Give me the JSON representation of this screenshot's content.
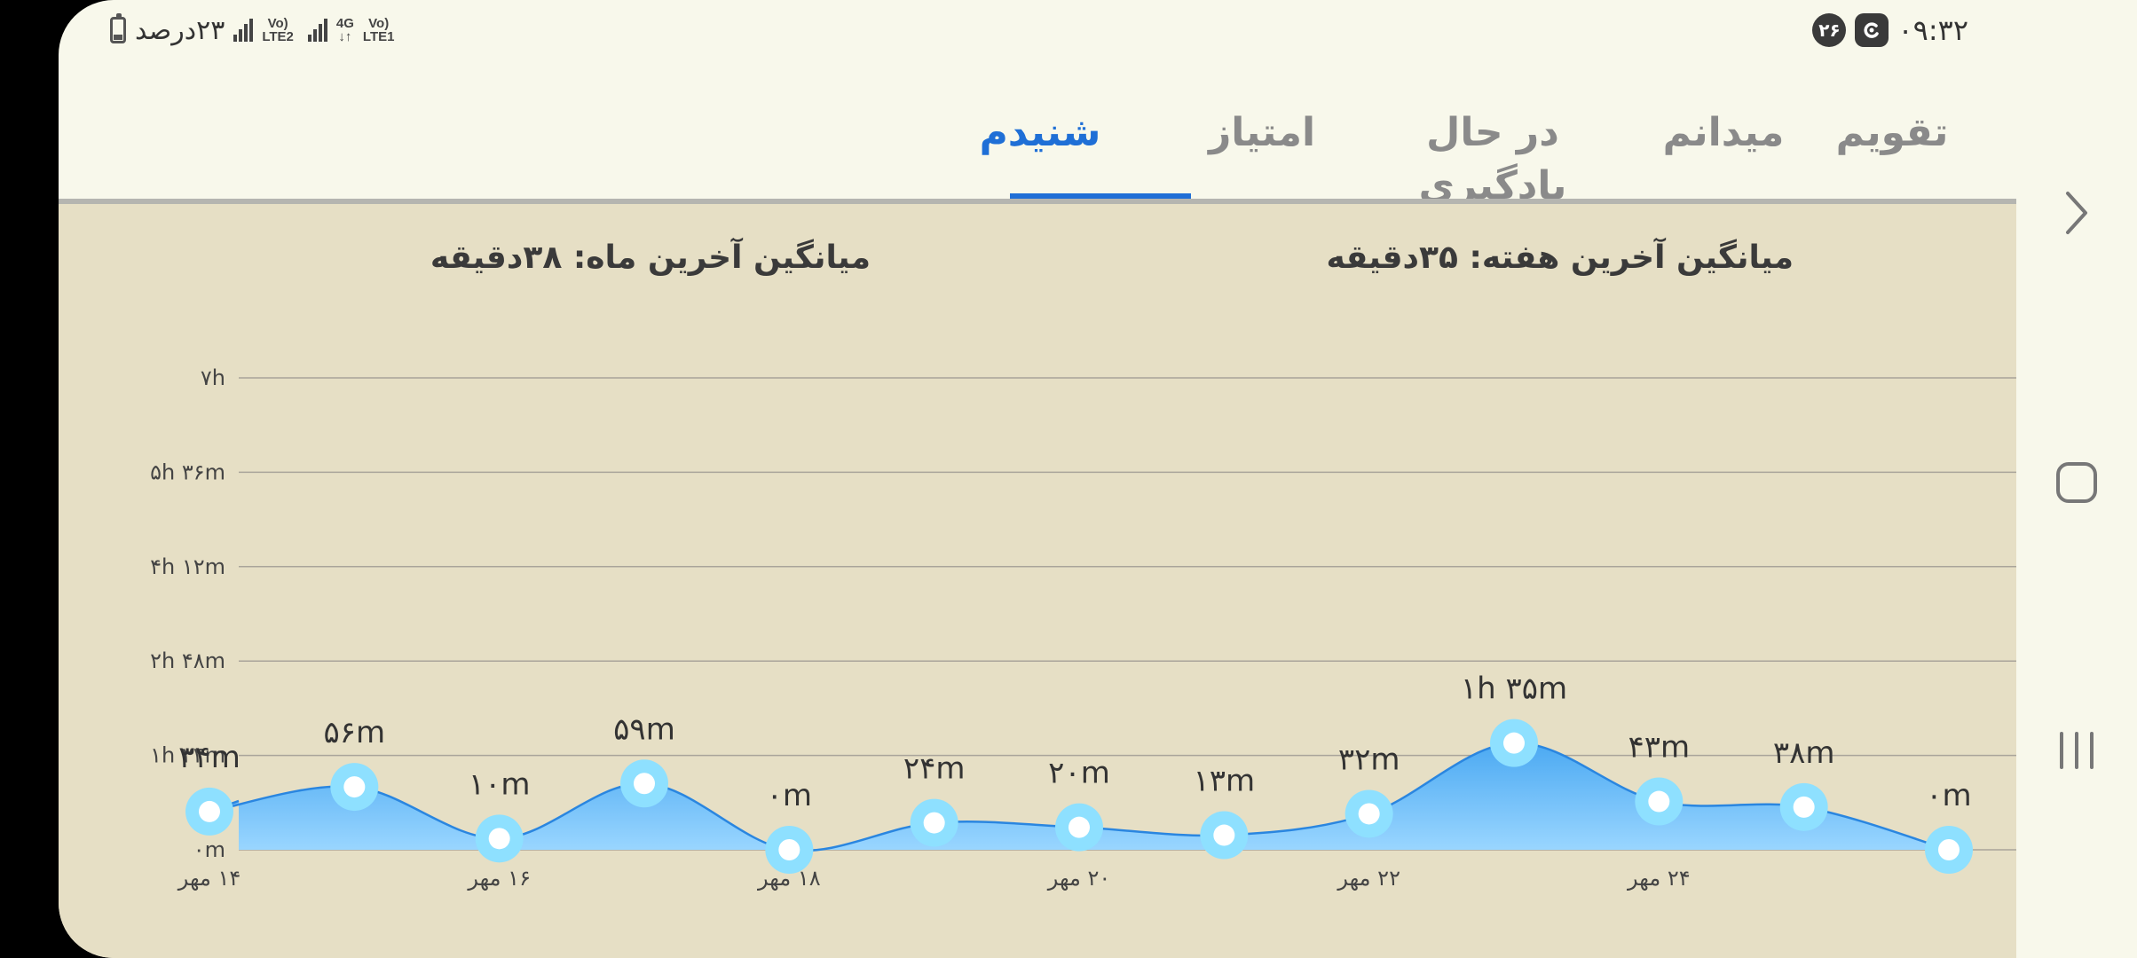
{
  "status_bar": {
    "time": "۰۹:۳۲",
    "notification_count": "۲۶",
    "battery_text": "۲۳درصد",
    "sim1_label": "Vo) LTE1",
    "sim1_network": "4G",
    "sim2_label": "Vo) LTE2"
  },
  "tabs": [
    {
      "label": "تقویم",
      "active": false
    },
    {
      "label": "میدانم",
      "active": false
    },
    {
      "label": "در حال یادگیری",
      "active": false
    },
    {
      "label": "امتیاز",
      "active": false
    },
    {
      "label": "شنیدم",
      "active": true
    }
  ],
  "summary": {
    "weekly_average": "میانگین آخرین هفته: ۳۵دقیقه",
    "monthly_average": "میانگین آخرین ماه: ۳۸دقیقه"
  },
  "colors": {
    "accent": "#1f6fd6",
    "area_top": "#5ab4f5",
    "area_bottom": "#8fd0ff",
    "line": "#2a86e0",
    "marker": "#8ee0ff",
    "background": "#e6dfc5"
  },
  "chart_data": {
    "type": "area",
    "y_unit": "minutes",
    "ylim": [
      0,
      420
    ],
    "y_ticks": [
      {
        "value": 0,
        "label": "۰m"
      },
      {
        "value": 84,
        "label": "۱h ۲۴m"
      },
      {
        "value": 168,
        "label": "۲h ۴۸m"
      },
      {
        "value": 252,
        "label": "۴h ۱۲m"
      },
      {
        "value": 336,
        "label": "۵h ۳۶m"
      },
      {
        "value": 420,
        "label": "۷h"
      }
    ],
    "x": [
      "۱۴ مهر",
      "۱۵ مهر",
      "۱۶ مهر",
      "۱۷ مهر",
      "۱۸ مهر",
      "۱۹ مهر",
      "۲۰ مهر",
      "۲۱ مهر",
      "۲۲ مهر",
      "۲۳ مهر",
      "۲۴ مهر",
      "۲۵ مهر",
      "۲۶ مهر"
    ],
    "x_tick_labels": [
      "۱۴ مهر",
      "",
      "۱۶ مهر",
      "",
      "۱۸ مهر",
      "",
      "۲۰ مهر",
      "",
      "۲۲ مهر",
      "",
      "۲۴ مهر",
      "",
      ""
    ],
    "series": [
      {
        "values": [
          34,
          56,
          10,
          59,
          0,
          24,
          20,
          13,
          32,
          95,
          43,
          38,
          0
        ],
        "data_labels": [
          "۳۴m",
          "۵۶m",
          "۱۰m",
          "۵۹m",
          "۰m",
          "۲۴m",
          "۲۰m",
          "۱۳m",
          "۳۲m",
          "۱h ۳۵m",
          "۴۳m",
          "۳۸m",
          "۰m"
        ]
      }
    ],
    "grid": true,
    "legend": "none"
  },
  "nav": {
    "back_icon": "chevron-right-icon",
    "home_icon": "rounded-square-icon",
    "recents_icon": "three-bars-icon"
  }
}
